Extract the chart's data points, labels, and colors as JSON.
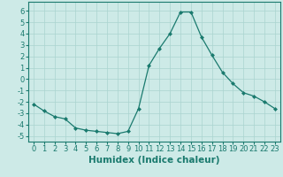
{
  "x": [
    0,
    1,
    2,
    3,
    4,
    5,
    6,
    7,
    8,
    9,
    10,
    11,
    12,
    13,
    14,
    15,
    16,
    17,
    18,
    19,
    20,
    21,
    22,
    23
  ],
  "y": [
    -2.2,
    -2.8,
    -3.3,
    -3.5,
    -4.3,
    -4.5,
    -4.6,
    -4.7,
    -4.8,
    -4.6,
    -2.6,
    1.2,
    2.7,
    4.0,
    5.9,
    5.9,
    3.7,
    2.1,
    0.6,
    -0.4,
    -1.2,
    -1.5,
    -2.0,
    -2.6
  ],
  "xlim": [
    -0.5,
    23.5
  ],
  "ylim": [
    -5.5,
    6.8
  ],
  "yticks": [
    -5,
    -4,
    -3,
    -2,
    -1,
    0,
    1,
    2,
    3,
    4,
    5,
    6
  ],
  "xticks": [
    0,
    1,
    2,
    3,
    4,
    5,
    6,
    7,
    8,
    9,
    10,
    11,
    12,
    13,
    14,
    15,
    16,
    17,
    18,
    19,
    20,
    21,
    22,
    23
  ],
  "xlabel": "Humidex (Indice chaleur)",
  "line_color": "#1a7a6e",
  "marker": "D",
  "marker_size": 2.0,
  "bg_color": "#cdeae7",
  "grid_color": "#aad4cf",
  "xlabel_fontsize": 7.5,
  "tick_fontsize": 6.0
}
